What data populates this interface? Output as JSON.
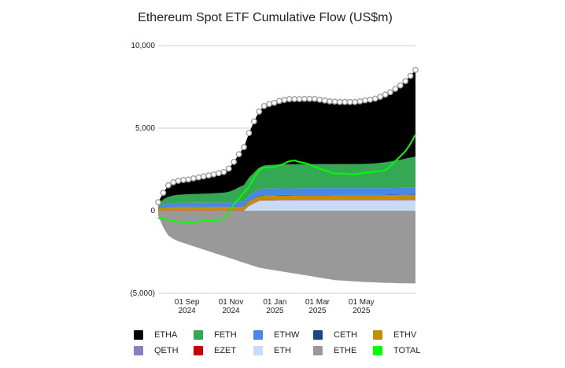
{
  "chart_data": {
    "type": "area",
    "title": "Ethereum Spot ETF Cumulative Flow (US$m)",
    "xlabel": "",
    "ylabel": "",
    "ylim": [
      -5000,
      10000
    ],
    "yticks": [
      -5000,
      0,
      5000,
      10000
    ],
    "ytick_labels": [
      "(5,000)",
      "0",
      "5,000",
      "10,000"
    ],
    "x_range": [
      "2024-07-23",
      "2025-07-15"
    ],
    "xticks": [
      {
        "date": "2024-09-01",
        "line1": "01 Sep",
        "line2": "2024"
      },
      {
        "date": "2024-11-01",
        "line1": "01 Nov",
        "line2": "2024"
      },
      {
        "date": "2025-01-01",
        "line1": "01 Jan",
        "line2": "2025"
      },
      {
        "date": "2025-03-01",
        "line1": "01 Mar",
        "line2": "2025"
      },
      {
        "date": "2025-05-01",
        "line1": "01 May",
        "line2": "2025"
      }
    ],
    "grid": "horizontal",
    "legend_position": "bottom",
    "x": [
      "2024-07-23",
      "2024-07-30",
      "2024-08-06",
      "2024-08-13",
      "2024-08-20",
      "2024-08-27",
      "2024-09-03",
      "2024-09-10",
      "2024-09-17",
      "2024-09-24",
      "2024-10-01",
      "2024-10-08",
      "2024-10-15",
      "2024-10-22",
      "2024-10-29",
      "2024-11-05",
      "2024-11-12",
      "2024-11-19",
      "2024-11-26",
      "2024-12-03",
      "2024-12-10",
      "2024-12-17",
      "2024-12-24",
      "2024-12-31",
      "2025-01-07",
      "2025-01-14",
      "2025-01-21",
      "2025-01-28",
      "2025-02-04",
      "2025-02-11",
      "2025-02-18",
      "2025-02-25",
      "2025-03-04",
      "2025-03-11",
      "2025-03-18",
      "2025-03-25",
      "2025-04-01",
      "2025-04-08",
      "2025-04-15",
      "2025-04-22",
      "2025-04-29",
      "2025-05-06",
      "2025-05-13",
      "2025-05-20",
      "2025-05-27",
      "2025-06-03",
      "2025-06-10",
      "2025-06-17",
      "2025-06-24",
      "2025-07-01",
      "2025-07-08",
      "2025-07-15"
    ],
    "series": [
      {
        "name": "ETH",
        "color": "#c9daf8",
        "values": [
          0,
          0,
          0,
          0,
          0,
          0,
          0,
          0,
          0,
          0,
          0,
          0,
          0,
          0,
          0,
          0,
          0,
          0,
          300,
          450,
          600,
          620,
          620,
          620,
          630,
          630,
          630,
          630,
          630,
          630,
          630,
          630,
          630,
          630,
          630,
          630,
          630,
          630,
          630,
          630,
          630,
          630,
          630,
          630,
          630,
          630,
          630,
          630,
          630,
          630,
          630,
          630
        ]
      },
      {
        "name": "EZET",
        "color": "#cc0000",
        "values": [
          10,
          12,
          13,
          14,
          15,
          15,
          15,
          15,
          15,
          15,
          15,
          16,
          16,
          16,
          17,
          18,
          18,
          19,
          20,
          21,
          22,
          22,
          23,
          23,
          23,
          23,
          23,
          24,
          24,
          24,
          24,
          24,
          24,
          24,
          24,
          25,
          25,
          25,
          25,
          25,
          25,
          25,
          25,
          25,
          25,
          26,
          26,
          26,
          26,
          26,
          26,
          26
        ]
      },
      {
        "name": "QETH",
        "color": "#8e7cc3",
        "values": [
          5,
          6,
          7,
          8,
          8,
          8,
          8,
          8,
          8,
          8,
          8,
          8,
          8,
          8,
          9,
          9,
          9,
          10,
          10,
          11,
          11,
          11,
          11,
          11,
          11,
          11,
          11,
          11,
          11,
          11,
          11,
          11,
          11,
          11,
          11,
          11,
          11,
          11,
          11,
          11,
          11,
          11,
          11,
          11,
          11,
          11,
          11,
          11,
          11,
          11,
          11,
          11
        ]
      },
      {
        "name": "ETHV",
        "color": "#bf9000",
        "values": [
          120,
          170,
          190,
          200,
          200,
          200,
          200,
          205,
          205,
          205,
          205,
          210,
          210,
          210,
          210,
          215,
          215,
          220,
          230,
          240,
          250,
          255,
          260,
          260,
          262,
          264,
          265,
          266,
          267,
          268,
          268,
          269,
          270,
          270,
          270,
          270,
          270,
          270,
          270,
          270,
          270,
          270,
          270,
          270,
          272,
          275,
          280,
          285,
          290,
          295,
          300,
          305
        ]
      },
      {
        "name": "CETH",
        "color": "#1c4587",
        "values": [
          10,
          15,
          18,
          20,
          20,
          20,
          20,
          20,
          20,
          20,
          20,
          20,
          20,
          20,
          20,
          20,
          22,
          24,
          26,
          28,
          30,
          30,
          30,
          30,
          30,
          30,
          30,
          30,
          30,
          30,
          30,
          30,
          30,
          30,
          30,
          30,
          30,
          30,
          30,
          30,
          30,
          30,
          30,
          30,
          30,
          30,
          30,
          30,
          30,
          30,
          30,
          30
        ]
      },
      {
        "name": "ETHW",
        "color": "#4a86e8",
        "values": [
          120,
          180,
          210,
          230,
          240,
          240,
          240,
          240,
          240,
          240,
          240,
          240,
          240,
          240,
          240,
          245,
          260,
          280,
          320,
          360,
          390,
          400,
          400,
          400,
          400,
          400,
          400,
          400,
          400,
          400,
          400,
          400,
          400,
          400,
          400,
          400,
          400,
          400,
          400,
          400,
          400,
          400,
          400,
          400,
          400,
          400,
          400,
          400,
          400,
          400,
          400,
          400
        ]
      },
      {
        "name": "FETH",
        "color": "#34a853",
        "values": [
          100,
          300,
          400,
          450,
          480,
          500,
          510,
          520,
          530,
          540,
          550,
          560,
          580,
          600,
          650,
          750,
          900,
          1000,
          1100,
          1200,
          1300,
          1400,
          1420,
          1440,
          1440,
          1450,
          1450,
          1450,
          1450,
          1460,
          1460,
          1460,
          1460,
          1460,
          1460,
          1460,
          1460,
          1460,
          1460,
          1460,
          1460,
          1470,
          1480,
          1500,
          1530,
          1560,
          1600,
          1650,
          1700,
          1760,
          1820,
          1880
        ]
      },
      {
        "name": "ETHA",
        "color": "#000000",
        "values": [
          150,
          400,
          700,
          800,
          850,
          880,
          900,
          950,
          1000,
          1050,
          1100,
          1150,
          1200,
          1250,
          1400,
          1700,
          2000,
          2300,
          2700,
          3100,
          3400,
          3600,
          3700,
          3750,
          3850,
          3900,
          3950,
          3950,
          3950,
          3950,
          3950,
          3950,
          3900,
          3850,
          3800,
          3780,
          3760,
          3760,
          3760,
          3760,
          3800,
          3850,
          3880,
          3920,
          4000,
          4100,
          4200,
          4350,
          4500,
          4700,
          4950,
          5250
        ]
      },
      {
        "name": "ETHE",
        "color": "#999999",
        "values": [
          -300,
          -1000,
          -1500,
          -1700,
          -1850,
          -1950,
          -2050,
          -2150,
          -2250,
          -2350,
          -2450,
          -2550,
          -2650,
          -2750,
          -2850,
          -2950,
          -3050,
          -3150,
          -3250,
          -3350,
          -3450,
          -3500,
          -3550,
          -3600,
          -3650,
          -3700,
          -3750,
          -3800,
          -3850,
          -3900,
          -3950,
          -4000,
          -4050,
          -4100,
          -4150,
          -4200,
          -4220,
          -4240,
          -4260,
          -4280,
          -4300,
          -4320,
          -4330,
          -4340,
          -4350,
          -4360,
          -4370,
          -4380,
          -4390,
          -4395,
          -4400,
          -4400
        ]
      },
      {
        "name": "TOTAL",
        "color": "#00ff00",
        "values": [
          -450,
          -500,
          -550,
          -600,
          -650,
          -700,
          -700,
          -680,
          -650,
          -620,
          -600,
          -580,
          -550,
          -500,
          -150,
          400,
          750,
          1100,
          1450,
          2000,
          2450,
          2630,
          2600,
          2650,
          2740,
          2860,
          3000,
          3050,
          2950,
          2900,
          2800,
          2650,
          2550,
          2450,
          2350,
          2250,
          2250,
          2250,
          2220,
          2200,
          2250,
          2300,
          2330,
          2370,
          2400,
          2450,
          2700,
          3000,
          3300,
          3600,
          4050,
          4600
        ]
      }
    ]
  }
}
